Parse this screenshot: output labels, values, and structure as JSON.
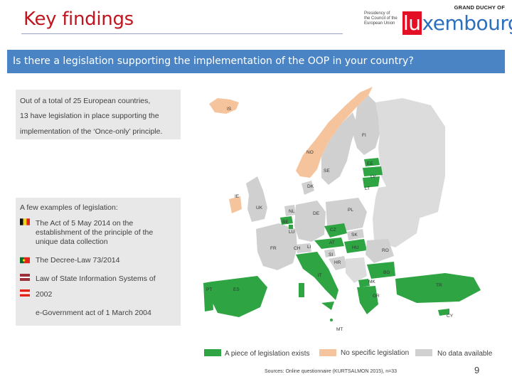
{
  "header": {
    "title": "Key findings",
    "logo": {
      "top_line": "GRAND DUCHY OF",
      "small_text": [
        "Presidency of",
        "the Council of the",
        "European Union"
      ],
      "word_highlight": "lu",
      "word_rest": "xembourg"
    }
  },
  "banner": {
    "question": "Is there a legislation supporting the implementation of the OOP in your country?"
  },
  "summary": {
    "line1": "Out of a total of 25 European countries,",
    "line2": "13 have legislation in place supporting the",
    "line3": "implementation of the ‘Once-only’ principle."
  },
  "examples": {
    "heading": "A few examples of legislation:",
    "item1_l1": "The Act of 5 May 2014 on the",
    "item1_l2": "establishment of the principle of the",
    "item1_l3": "unique data collection",
    "item2": "The Decree-Law 73/2014",
    "item3_l1": "Law of State Information Systems of",
    "item3_l2": "2002",
    "item4": "e-Government act of 1 March 2004"
  },
  "map": {
    "countries": {
      "IS": "IS",
      "FI": "FI",
      "NO": "NO",
      "EE": "EE",
      "SE": "SE",
      "LV": "LV",
      "DK": "DK",
      "LT": "LT",
      "IE": "IE",
      "UK": "UK",
      "NL": "NL",
      "DE": "DE",
      "PL": "PL",
      "BE": "BE",
      "LU": "LU",
      "CZ": "CZ",
      "SK": "SK",
      "FR": "FR",
      "CH": "CH",
      "LI": "LI",
      "AT": "AT",
      "HU": "HU",
      "RO": "RO",
      "SI": "SI",
      "HR": "HR",
      "BG": "BG",
      "IT": "IT",
      "MK": "MK",
      "PT": "PT",
      "ES": "ES",
      "TR": "TR",
      "GR": "GR",
      "CY": "CY",
      "MT": "MT"
    }
  },
  "legend": {
    "legislation": "A piece of legislation exists",
    "no_legislation": "No specific legislation",
    "no_data": "No data available"
  },
  "footer": {
    "source": "Sources: Online questionnaire (KURTSALMON 2015), n=33",
    "page_number": "9"
  },
  "colors": {
    "title": "#c0161f",
    "banner": "#4a84c4",
    "legislation": "#2ea443",
    "no_legislation": "#f6c49c",
    "no_data": "#d0d0d0",
    "text_box": "#e8e8e8"
  }
}
